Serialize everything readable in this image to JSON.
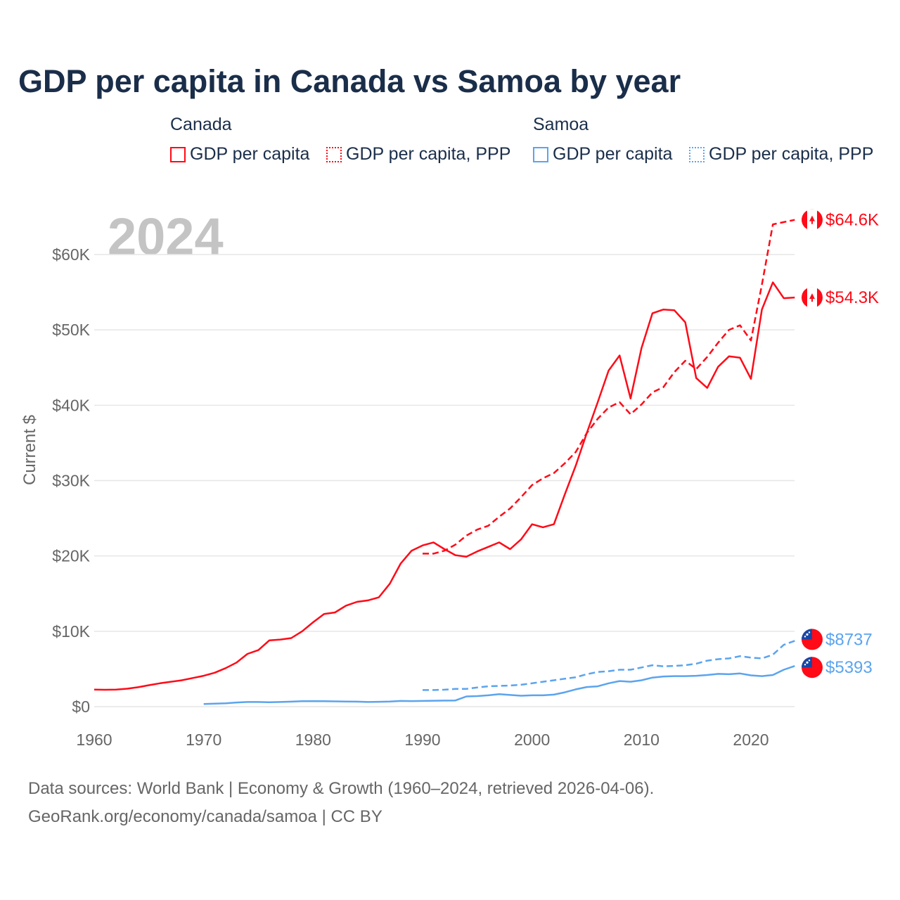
{
  "chart_data": {
    "type": "line",
    "title": "GDP per capita in Canada vs Samoa by year",
    "ylabel": "Current $",
    "xlabel": "",
    "year_label": "2024",
    "xlim": [
      1960,
      2024
    ],
    "ylim": [
      0,
      65000
    ],
    "x_ticks": [
      "1960",
      "1970",
      "1980",
      "1990",
      "2000",
      "2010",
      "2020"
    ],
    "y_ticks": [
      {
        "v": 0,
        "label": "$0"
      },
      {
        "v": 10000,
        "label": "$10K"
      },
      {
        "v": 20000,
        "label": "$20K"
      },
      {
        "v": 30000,
        "label": "$30K"
      },
      {
        "v": 40000,
        "label": "$40K"
      },
      {
        "v": 50000,
        "label": "$50K"
      },
      {
        "v": 60000,
        "label": "$60K"
      }
    ],
    "grid": true,
    "legend": {
      "groups": [
        {
          "name": "Canada",
          "items": [
            "GDP per capita",
            "GDP per capita, PPP"
          ]
        },
        {
          "name": "Samoa",
          "items": [
            "GDP per capita",
            "GDP per capita, PPP"
          ]
        }
      ],
      "placement": "top"
    },
    "series": [
      {
        "country": "Canada",
        "name": "GDP per capita",
        "color": "#ff0a17",
        "dash": false,
        "start": 1960,
        "end_label": "$54.3K",
        "values": [
          2.26,
          2.24,
          2.27,
          2.38,
          2.58,
          2.85,
          3.1,
          3.3,
          3.5,
          3.8,
          4.1,
          4.5,
          5.1,
          5.85,
          7.0,
          7.5,
          8.8,
          8.9,
          9.1,
          10.0,
          11.2,
          12.3,
          12.5,
          13.4,
          13.9,
          14.1,
          14.5,
          16.3,
          19.0,
          20.7,
          21.4,
          21.8,
          20.9,
          20.1,
          19.9,
          20.6,
          21.2,
          21.8,
          20.9,
          22.2,
          24.2,
          23.8,
          24.2,
          28.2,
          32.0,
          36.3,
          40.4,
          44.6,
          46.6,
          40.9,
          47.6,
          52.2,
          52.7,
          52.6,
          51.0,
          43.6,
          42.3,
          45.1,
          46.5,
          46.3,
          43.5,
          52.7,
          56.3,
          54.2,
          54.3
        ]
      },
      {
        "country": "Canada",
        "name": "GDP per capita, PPP",
        "color": "#ff0a17",
        "dash": true,
        "start": 1990,
        "end_label": "$64.6K",
        "values": [
          20.3,
          20.3,
          20.7,
          21.5,
          22.7,
          23.5,
          24.0,
          25.2,
          26.3,
          27.8,
          29.4,
          30.3,
          31.0,
          32.3,
          33.8,
          36.3,
          38.2,
          39.7,
          40.4,
          38.8,
          40.1,
          41.7,
          42.4,
          44.4,
          45.9,
          44.8,
          46.4,
          48.3,
          50.0,
          50.6,
          48.6,
          56.0,
          64.0,
          64.3,
          64.6
        ]
      },
      {
        "country": "Samoa",
        "name": "GDP per capita",
        "color": "#5ba4ee",
        "dash": false,
        "start": 1970,
        "end_label": "$5393",
        "values": [
          0.35,
          0.4,
          0.45,
          0.55,
          0.62,
          0.62,
          0.58,
          0.62,
          0.66,
          0.72,
          0.74,
          0.72,
          0.7,
          0.68,
          0.66,
          0.62,
          0.64,
          0.68,
          0.76,
          0.74,
          0.76,
          0.78,
          0.8,
          0.82,
          1.35,
          1.4,
          1.5,
          1.65,
          1.55,
          1.45,
          1.5,
          1.5,
          1.6,
          1.9,
          2.3,
          2.6,
          2.7,
          3.1,
          3.4,
          3.3,
          3.5,
          3.85,
          4.0,
          4.05,
          4.05,
          4.1,
          4.2,
          4.35,
          4.3,
          4.4,
          4.15,
          4.05,
          4.2,
          4.9,
          5.393
        ]
      },
      {
        "country": "Samoa",
        "name": "GDP per capita, PPP",
        "color": "#5ba4ee",
        "dash": true,
        "start": 1990,
        "end_label": "$8737",
        "values": [
          2.2,
          2.2,
          2.25,
          2.35,
          2.35,
          2.55,
          2.7,
          2.75,
          2.8,
          2.9,
          3.1,
          3.3,
          3.5,
          3.7,
          3.9,
          4.3,
          4.6,
          4.7,
          4.9,
          4.9,
          5.2,
          5.5,
          5.35,
          5.4,
          5.5,
          5.7,
          6.1,
          6.3,
          6.4,
          6.7,
          6.5,
          6.4,
          6.9,
          8.2,
          8.737
        ]
      }
    ],
    "value_units": "thousands of current US$"
  },
  "footer": {
    "line1": "Data sources: World Bank | Economy & Growth (1960–2024, retrieved 2026-04-06).",
    "line2": "GeoRank.org/economy/canada/samoa | CC BY"
  }
}
